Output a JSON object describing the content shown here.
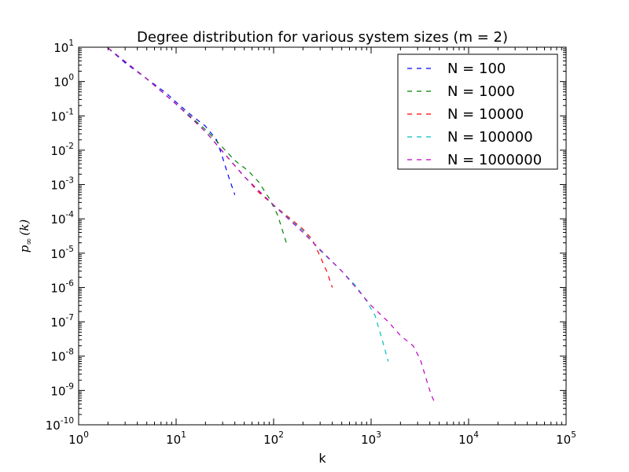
{
  "chart_data": {
    "type": "line",
    "title": "Degree distribution for various system sizes (m = 2)",
    "xlabel": "k",
    "ylabel_math": "∞",
    "ylabel_parts": {
      "p": "p",
      "sub": "∞",
      "arg": "(k)"
    },
    "xscale": "log",
    "yscale": "log",
    "xlim": [
      1,
      100000
    ],
    "ylim": [
      1e-10,
      10
    ],
    "x_ticks": [
      {
        "base": "10",
        "exp": "0",
        "value": 1
      },
      {
        "base": "10",
        "exp": "1",
        "value": 10
      },
      {
        "base": "10",
        "exp": "2",
        "value": 100
      },
      {
        "base": "10",
        "exp": "3",
        "value": 1000
      },
      {
        "base": "10",
        "exp": "4",
        "value": 10000
      },
      {
        "base": "10",
        "exp": "5",
        "value": 100000
      }
    ],
    "y_ticks": [
      {
        "base": "10",
        "exp": "1",
        "value": 10
      },
      {
        "base": "10",
        "exp": "0",
        "value": 1
      },
      {
        "base": "10",
        "exp": "-1",
        "value": 0.1
      },
      {
        "base": "10",
        "exp": "-2",
        "value": 0.01
      },
      {
        "base": "10",
        "exp": "-3",
        "value": 0.001
      },
      {
        "base": "10",
        "exp": "-4",
        "value": 0.0001
      },
      {
        "base": "10",
        "exp": "-5",
        "value": 1e-05
      },
      {
        "base": "10",
        "exp": "-6",
        "value": 1e-06
      },
      {
        "base": "10",
        "exp": "-7",
        "value": 1e-07
      },
      {
        "base": "10",
        "exp": "-8",
        "value": 1e-08
      },
      {
        "base": "10",
        "exp": "-9",
        "value": 1e-09
      },
      {
        "base": "10",
        "exp": "-10",
        "value": 1e-10
      }
    ],
    "grid": false,
    "legend_position": "top-right",
    "series": [
      {
        "name": "N = 100",
        "color": "#0000ff",
        "x": [
          2,
          3,
          5,
          8,
          10,
          14,
          20,
          26,
          30,
          35,
          40
        ],
        "y": [
          9.5,
          3.5,
          1.2,
          0.45,
          0.25,
          0.11,
          0.05,
          0.02,
          0.006,
          0.0015,
          0.0005
        ]
      },
      {
        "name": "N = 1000",
        "color": "#008000",
        "x": [
          2,
          5,
          10,
          20,
          30,
          40,
          55,
          70,
          90,
          110,
          135
        ],
        "y": [
          9.5,
          1.2,
          0.22,
          0.04,
          0.012,
          0.005,
          0.0025,
          0.0012,
          0.0004,
          0.00013,
          2e-05
        ]
      },
      {
        "name": "N = 10000",
        "color": "#ff0000",
        "x": [
          2,
          5,
          10,
          20,
          40,
          70,
          100,
          150,
          200,
          250,
          300,
          350,
          400
        ],
        "y": [
          9.5,
          1.2,
          0.22,
          0.035,
          0.0035,
          0.0006,
          0.00025,
          0.0001,
          5e-05,
          2.5e-05,
          8e-06,
          3e-06,
          1e-06
        ]
      },
      {
        "name": "N = 100000",
        "color": "#00bfbf",
        "x": [
          2,
          5,
          10,
          20,
          50,
          100,
          200,
          300,
          500,
          700,
          900,
          1100,
          1300,
          1500
        ],
        "y": [
          9.5,
          1.2,
          0.22,
          0.035,
          0.0017,
          0.00025,
          4.5e-05,
          1.2e-05,
          3e-06,
          1.1e-06,
          4e-07,
          1.5e-07,
          3e-08,
          7e-09
        ]
      },
      {
        "name": "N = 1000000",
        "color": "#bf00bf",
        "x": [
          2,
          5,
          10,
          20,
          50,
          100,
          200,
          500,
          1000,
          1500,
          2000,
          2700,
          3200,
          3700,
          4100,
          4400
        ],
        "y": [
          9.5,
          1.2,
          0.22,
          0.035,
          0.0017,
          0.00025,
          4e-05,
          3e-06,
          3e-07,
          1e-07,
          4e-08,
          2e-08,
          8e-09,
          2e-09,
          8e-10,
          5e-10
        ]
      }
    ]
  }
}
